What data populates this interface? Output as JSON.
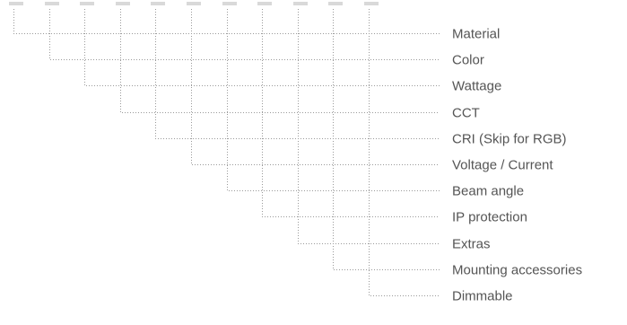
{
  "code_segments": [
    {
      "label": "Material"
    },
    {
      "label": "Color"
    },
    {
      "label": "Wattage"
    },
    {
      "label": "CCT"
    },
    {
      "label": "CRI (Skip for RGB)"
    },
    {
      "label": "Voltage / Current"
    },
    {
      "label": "Beam angle"
    },
    {
      "label": "IP protection"
    },
    {
      "label": "Extras"
    },
    {
      "label": "Mounting accessories"
    },
    {
      "label": "Dimmable"
    }
  ],
  "colors": {
    "slot": "#d9d9d9",
    "connector": "#9a9a9a",
    "label": "#555555"
  }
}
